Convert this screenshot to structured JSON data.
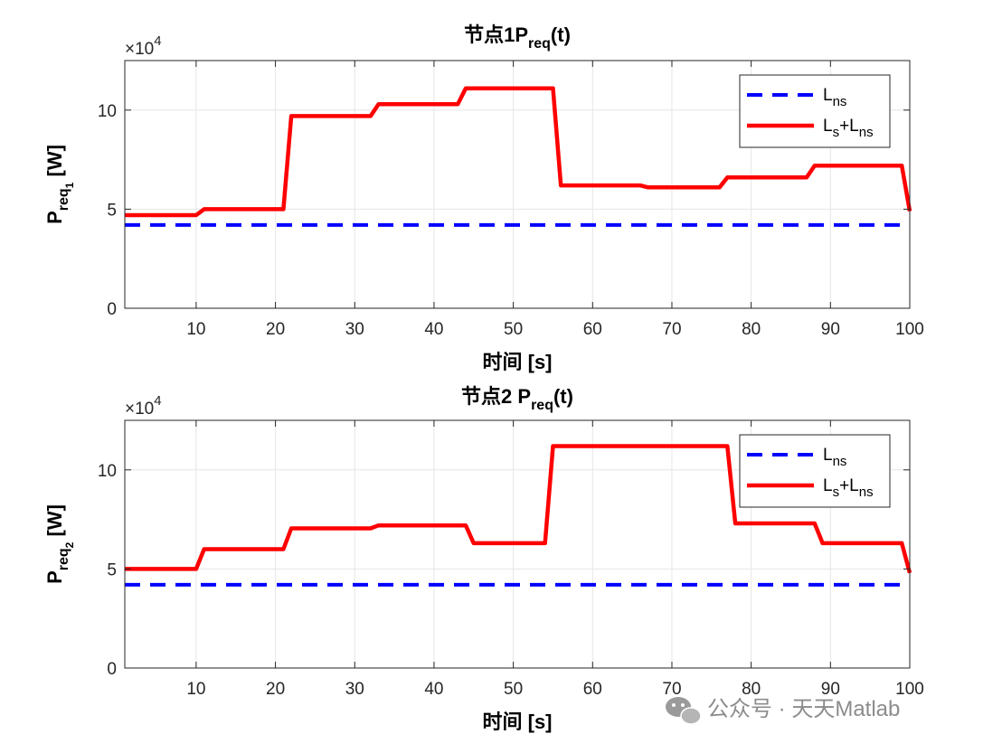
{
  "chart_data": [
    {
      "type": "line",
      "title": {
        "prefix": "节点1",
        "main": "P",
        "sub": "req",
        "suffix": "(t)"
      },
      "xlabel": {
        "cn": "时间",
        "unit": " [s]"
      },
      "ylabel": {
        "main": "P",
        "sub": "req",
        "subsub": "1",
        "unit": " [W]"
      },
      "exponent": {
        "base": "×10",
        "power": "4"
      },
      "xlim": [
        1,
        100
      ],
      "ylim": [
        0,
        125000
      ],
      "xticks": [
        10,
        20,
        30,
        40,
        50,
        60,
        70,
        80,
        90,
        100
      ],
      "yticks": [
        0,
        50000,
        100000
      ],
      "ytick_labels": [
        "0",
        "5",
        "10"
      ],
      "grid": true,
      "legend_position": "top-right",
      "series": [
        {
          "name": {
            "main": "L",
            "sub": "ns",
            "extra": "",
            "extra_sub": ""
          },
          "style": "dashed",
          "color": "#0000ff",
          "x": [
            1,
            100
          ],
          "y": [
            42000,
            42000
          ]
        },
        {
          "name": {
            "main": "L",
            "sub": "s",
            "extra": "+L",
            "extra_sub": "ns"
          },
          "style": "solid",
          "color": "#ff0000",
          "x": [
            1,
            10,
            11,
            21,
            22,
            32,
            33,
            43,
            44,
            55,
            56,
            66,
            67,
            76,
            77,
            87,
            88,
            99,
            100
          ],
          "y": [
            47000,
            47000,
            50000,
            50000,
            97000,
            97000,
            103000,
            103000,
            111000,
            111000,
            62000,
            62000,
            61000,
            61000,
            66000,
            66000,
            72000,
            72000,
            49000
          ]
        }
      ]
    },
    {
      "type": "line",
      "title": {
        "prefix": "节点2 ",
        "main": "P",
        "sub": "req",
        "suffix": "(t)"
      },
      "xlabel": {
        "cn": "时间",
        "unit": " [s]"
      },
      "ylabel": {
        "main": "P",
        "sub": "req",
        "subsub": "2",
        "unit": " [W]"
      },
      "exponent": {
        "base": "×10",
        "power": "4"
      },
      "xlim": [
        1,
        100
      ],
      "ylim": [
        0,
        125000
      ],
      "xticks": [
        10,
        20,
        30,
        40,
        50,
        60,
        70,
        80,
        90,
        100
      ],
      "yticks": [
        0,
        50000,
        100000
      ],
      "ytick_labels": [
        "0",
        "5",
        "10"
      ],
      "grid": true,
      "legend_position": "top-right",
      "series": [
        {
          "name": {
            "main": "L",
            "sub": "ns",
            "extra": "",
            "extra_sub": ""
          },
          "style": "dashed",
          "color": "#0000ff",
          "x": [
            1,
            100
          ],
          "y": [
            42000,
            42000
          ]
        },
        {
          "name": {
            "main": "L",
            "sub": "s",
            "extra": "+L",
            "extra_sub": "ns"
          },
          "style": "solid",
          "color": "#ff0000",
          "x": [
            1,
            10,
            11,
            21,
            22,
            32,
            33,
            44,
            45,
            54,
            55,
            77,
            78,
            88,
            89,
            99,
            100
          ],
          "y": [
            50000,
            50000,
            60000,
            60000,
            70500,
            70500,
            72000,
            72000,
            63000,
            63000,
            112000,
            112000,
            73000,
            73000,
            63000,
            63000,
            48000
          ]
        }
      ]
    }
  ],
  "watermark": {
    "text": "公众号 · 天天Matlab",
    "icon": "wechat-icon"
  }
}
